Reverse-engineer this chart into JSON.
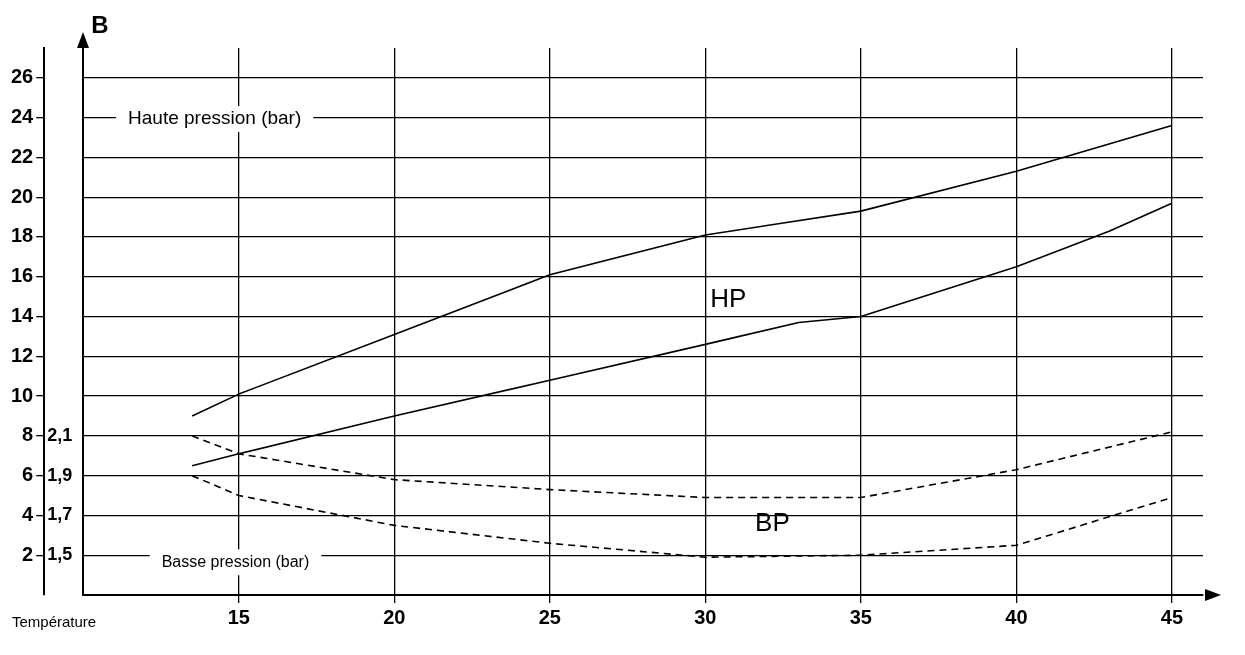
{
  "chart_data": {
    "type": "line",
    "title": "B",
    "xlabel": "Température",
    "xlim": [
      10,
      46
    ],
    "xticks": [
      15,
      20,
      25,
      30,
      35,
      40,
      45
    ],
    "ylim": [
      0,
      27.5
    ],
    "yticks": [
      2,
      4,
      6,
      8,
      10,
      12,
      14,
      16,
      18,
      20,
      22,
      24,
      26
    ],
    "y2lim": [
      1.3,
      4.05
    ],
    "y2ticks": [
      {
        "value": 1.5,
        "label": "1,5"
      },
      {
        "value": 1.7,
        "label": "1,7"
      },
      {
        "value": 1.9,
        "label": "1,9"
      },
      {
        "value": 2.1,
        "label": "2,1"
      }
    ],
    "grid": true,
    "legend": false,
    "marker": "none",
    "series": [
      {
        "color": "#000000",
        "line_style": "solid",
        "x": [
          13.5,
          15,
          20,
          25,
          30,
          35,
          40,
          45
        ],
        "values": [
          9.0,
          10.1,
          13.1,
          16.1,
          18.1,
          19.3,
          21.3,
          23.6
        ]
      },
      {
        "color": "#000000",
        "line_style": "solid",
        "x": [
          13.5,
          15,
          20,
          25,
          30,
          33,
          35,
          40,
          43,
          45
        ],
        "values": [
          6.5,
          7.1,
          9.0,
          10.8,
          12.6,
          13.7,
          14.0,
          16.5,
          18.3,
          19.7
        ]
      },
      {
        "color": "#000000",
        "line_style": "dashed",
        "axis": "y2",
        "x": [
          13.5,
          15,
          20,
          25,
          30,
          35,
          40,
          45
        ],
        "values": [
          2.1,
          2.01,
          1.88,
          1.83,
          1.79,
          1.79,
          1.93,
          2.12
        ]
      },
      {
        "color": "#000000",
        "line_style": "dashed",
        "axis": "y2",
        "x": [
          13.5,
          15,
          20,
          25,
          30,
          35,
          40,
          45
        ],
        "values": [
          1.9,
          1.8,
          1.65,
          1.56,
          1.49,
          1.5,
          1.55,
          1.79
        ]
      }
    ],
    "annotations": [
      "Haute pression (bar)",
      "Basse pression (bar)",
      "HP",
      "BP"
    ]
  }
}
